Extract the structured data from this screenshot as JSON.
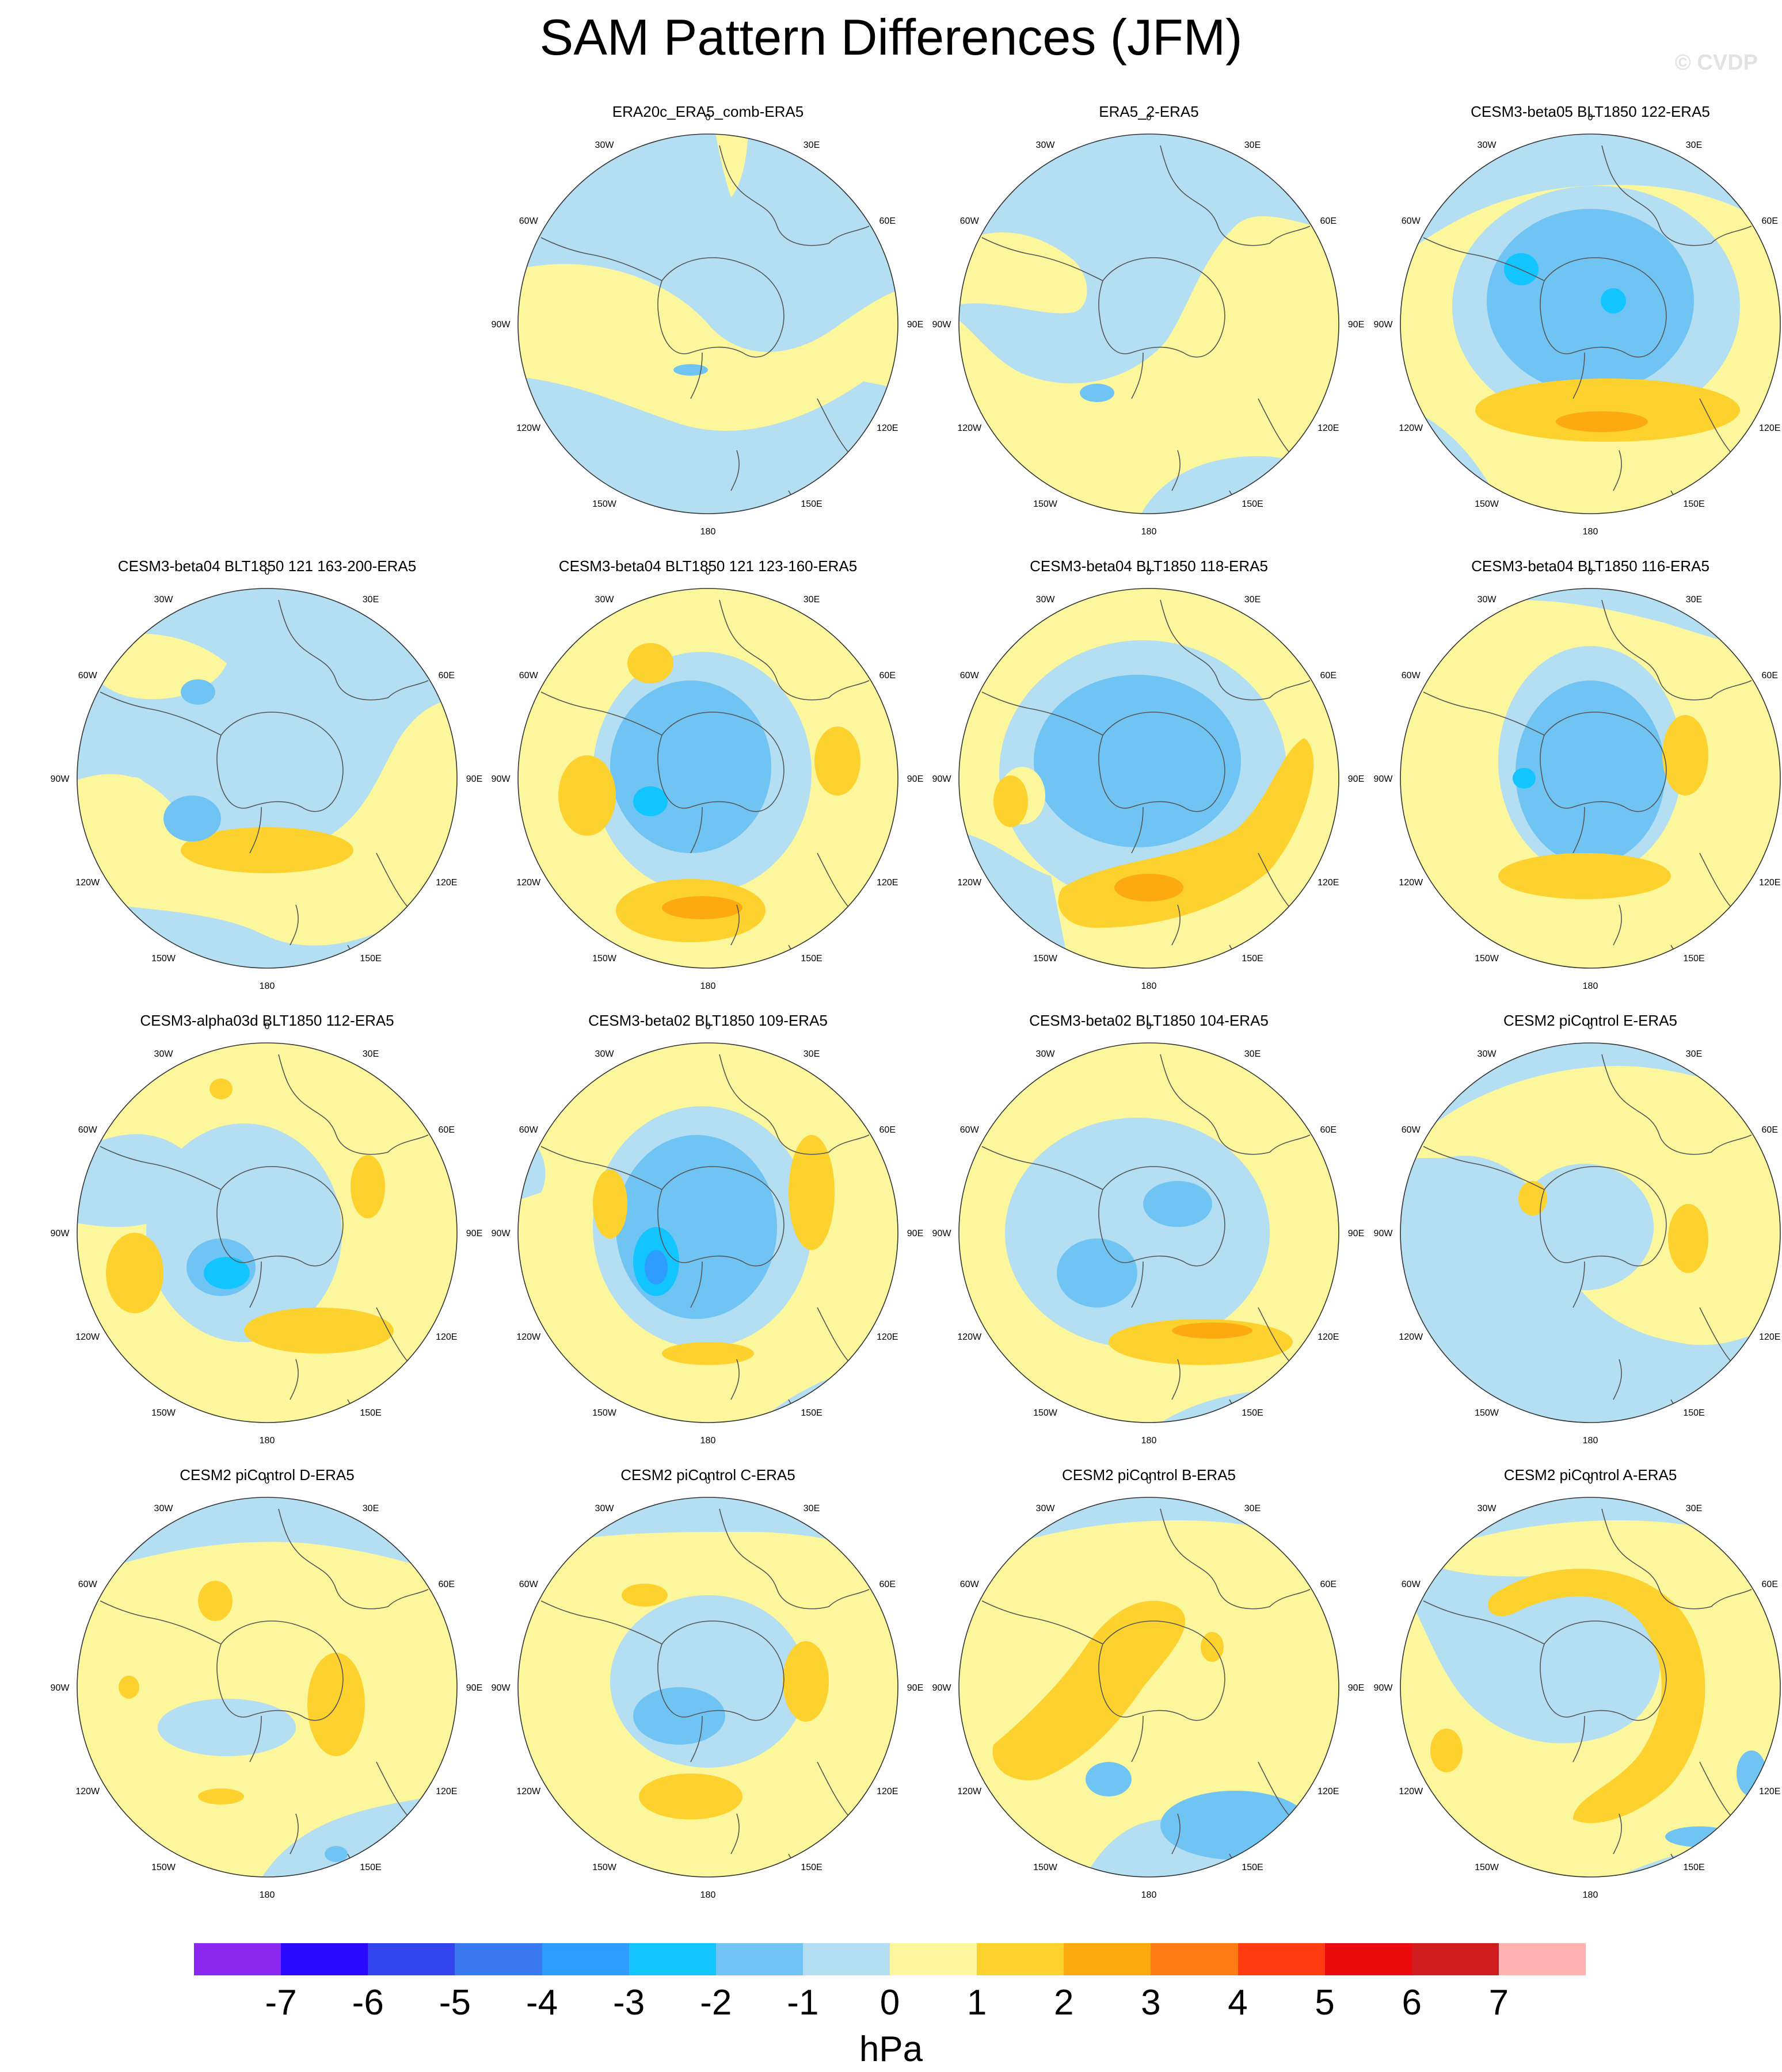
{
  "title": "SAM Pattern Differences (JFM)",
  "watermark": "© CVDP",
  "units": "hPa",
  "colors": {
    "levels": [
      "#8b27ee",
      "#2b08ff",
      "#3444ec",
      "#3a78f0",
      "#2f9cff",
      "#12c4ff",
      "#70c4f4",
      "#b4def2",
      "#fcf69c",
      "#fdd22e",
      "#fcaa10",
      "#fd7c13",
      "#ff3c12",
      "#ea0b0e",
      "#cf1c1e",
      "#feb2b2"
    ],
    "continent_outline": "#555555",
    "circle_outline": "#333333"
  },
  "colorbar": {
    "tick_labels": [
      "-7",
      "-6",
      "-5",
      "-4",
      "-3",
      "-2",
      "-1",
      "0",
      "1",
      "2",
      "3",
      "4",
      "5",
      "6",
      "7"
    ]
  },
  "longitude_labels": [
    "0",
    "30E",
    "60E",
    "90E",
    "120E",
    "150E",
    "180",
    "150W",
    "120W",
    "90W",
    "60W",
    "30W"
  ],
  "panels": [
    {
      "title": "ERA20c_ERA5_comb-ERA5",
      "row": 0,
      "col": 1,
      "pattern": "p0"
    },
    {
      "title": "ERA5_2-ERA5",
      "row": 0,
      "col": 2,
      "pattern": "p1"
    },
    {
      "title": "CESM3-beta05 BLT1850 122-ERA5",
      "row": 0,
      "col": 3,
      "pattern": "p2"
    },
    {
      "title": "CESM3-beta04 BLT1850 121 163-200-ERA5",
      "row": 1,
      "col": 0,
      "pattern": "p3"
    },
    {
      "title": "CESM3-beta04 BLT1850 121 123-160-ERA5",
      "row": 1,
      "col": 1,
      "pattern": "p4"
    },
    {
      "title": "CESM3-beta04 BLT1850 118-ERA5",
      "row": 1,
      "col": 2,
      "pattern": "p5"
    },
    {
      "title": "CESM3-beta04 BLT1850 116-ERA5",
      "row": 1,
      "col": 3,
      "pattern": "p6"
    },
    {
      "title": "CESM3-alpha03d BLT1850 112-ERA5",
      "row": 2,
      "col": 0,
      "pattern": "p7"
    },
    {
      "title": "CESM3-beta02 BLT1850 109-ERA5",
      "row": 2,
      "col": 1,
      "pattern": "p8"
    },
    {
      "title": "CESM3-beta02 BLT1850 104-ERA5",
      "row": 2,
      "col": 2,
      "pattern": "p9"
    },
    {
      "title": "CESM2 piControl E-ERA5",
      "row": 2,
      "col": 3,
      "pattern": "p10"
    },
    {
      "title": "CESM2 piControl D-ERA5",
      "row": 3,
      "col": 0,
      "pattern": "p11"
    },
    {
      "title": "CESM2 piControl C-ERA5",
      "row": 3,
      "col": 1,
      "pattern": "p12"
    },
    {
      "title": "CESM2 piControl B-ERA5",
      "row": 3,
      "col": 2,
      "pattern": "p13"
    },
    {
      "title": "CESM2 piControl A-ERA5",
      "row": 3,
      "col": 3,
      "pattern": "p14"
    }
  ]
}
